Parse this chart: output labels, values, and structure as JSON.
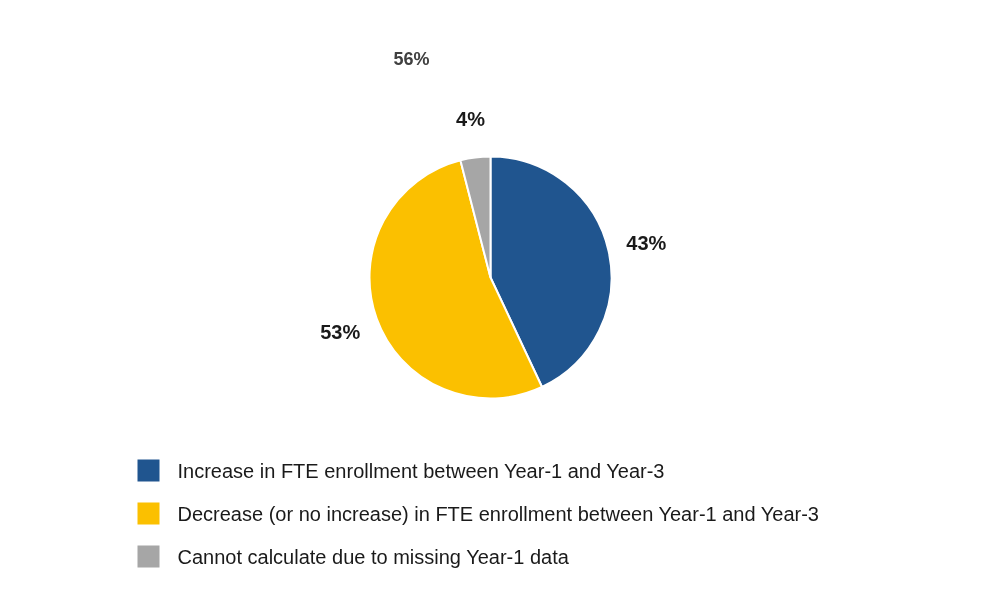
{
  "chart_data": {
    "type": "pie",
    "categories": [
      "Increase in FTE enrollment between Year-1 and Year-3",
      "Decrease (or no increase) in FTE enrollment between Year-1 and Year-3",
      "Cannot calculate due to missing Year-1 data"
    ],
    "values": [
      43,
      53,
      4
    ],
    "colors": [
      "#20558f",
      "#fbc000",
      "#a6a6a6"
    ],
    "value_labels": [
      "43%",
      "53%",
      "4%"
    ],
    "legend": "bottom left",
    "annotations": [
      "56%"
    ]
  }
}
